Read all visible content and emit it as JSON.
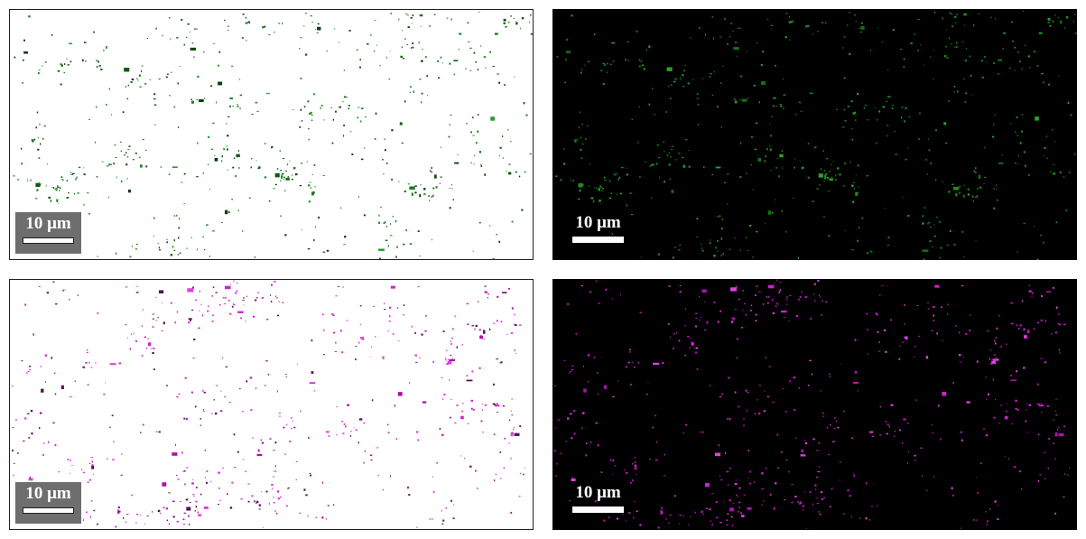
{
  "panels": [
    {
      "id": "p1",
      "scale_label": "10 μm",
      "background": "#ffffff",
      "dot_colors": [
        "#1a7a1a",
        "#0d5c0d",
        "#2e9a2e",
        "#0a3f0a"
      ],
      "seed": 11
    },
    {
      "id": "p2",
      "scale_label": "10 μm",
      "background": "#000000",
      "dot_colors": [
        "#1f8f1f",
        "#2aa02a",
        "#167016"
      ],
      "seed": 11
    },
    {
      "id": "p3",
      "scale_label": "10 μm",
      "background": "#ffffff",
      "dot_colors": [
        "#cc22cc",
        "#aa11aa",
        "#e040e0",
        "#551155"
      ],
      "seed": 29
    },
    {
      "id": "p4",
      "scale_label": "10 μm",
      "background": "#000000",
      "dot_colors": [
        "#d020d0",
        "#e040e0",
        "#b010b0"
      ],
      "seed": 29
    }
  ]
}
